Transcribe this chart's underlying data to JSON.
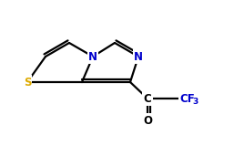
{
  "bg_color": "#ffffff",
  "bond_color": "#000000",
  "atom_colors": {
    "N": "#0000cc",
    "S": "#ddaa00",
    "O": "#000000",
    "C": "#000000",
    "F": "#0000cc"
  },
  "figsize": [
    2.57,
    1.71
  ],
  "dpi": 100,
  "lw": 1.6,
  "fontsize": 8.5
}
